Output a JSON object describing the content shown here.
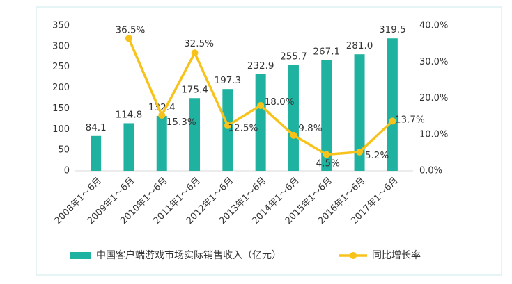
{
  "chart_data": {
    "type": "bar-line",
    "categories": [
      "2008年1～6月",
      "2009年1～6月",
      "2010年1～6月",
      "2011年1～6月",
      "2012年1～6月",
      "2013年1～6月",
      "2014年1～6月",
      "2015年1～6月",
      "2016年1～6月",
      "2017年1～6月"
    ],
    "series": [
      {
        "name": "中国客户端游戏市场实际销售收入（亿元）",
        "color": "#20b2a0",
        "type": "bar",
        "values": [
          84.1,
          114.8,
          132.4,
          175.4,
          197.3,
          232.9,
          255.7,
          267.1,
          281,
          319.5
        ],
        "value_labels": [
          "84.1",
          "114.8",
          "132.4",
          "175.4",
          "197.3",
          "232.9",
          "255.7",
          "267.1",
          "281.0",
          "319.5"
        ]
      },
      {
        "name": "同比增长率",
        "color": "#f7c31a",
        "type": "line",
        "axis": "y2",
        "values": [
          null,
          36.5,
          15.3,
          32.5,
          12.5,
          18,
          9.8,
          4.5,
          5.2,
          13.7
        ],
        "value_labels": [
          null,
          "36.5%",
          "15.3%",
          "32.5%",
          "12.5%",
          "18.0%",
          "9.8%",
          "4.5%",
          "5.2%",
          "13.7%"
        ]
      }
    ],
    "ylim": [
      0,
      350
    ],
    "yticks": [
      0,
      50,
      100,
      150,
      200,
      250,
      300,
      350
    ],
    "y2lim": [
      0,
      40
    ],
    "y2ticks": [
      {
        "value": 0,
        "label": "0.0%"
      },
      {
        "value": 10,
        "label": "10.0%"
      },
      {
        "value": 20,
        "label": "20.0%"
      },
      {
        "value": 30,
        "label": "30.0%"
      },
      {
        "value": 40,
        "label": "40.0%"
      }
    ],
    "legend": "bottom"
  }
}
